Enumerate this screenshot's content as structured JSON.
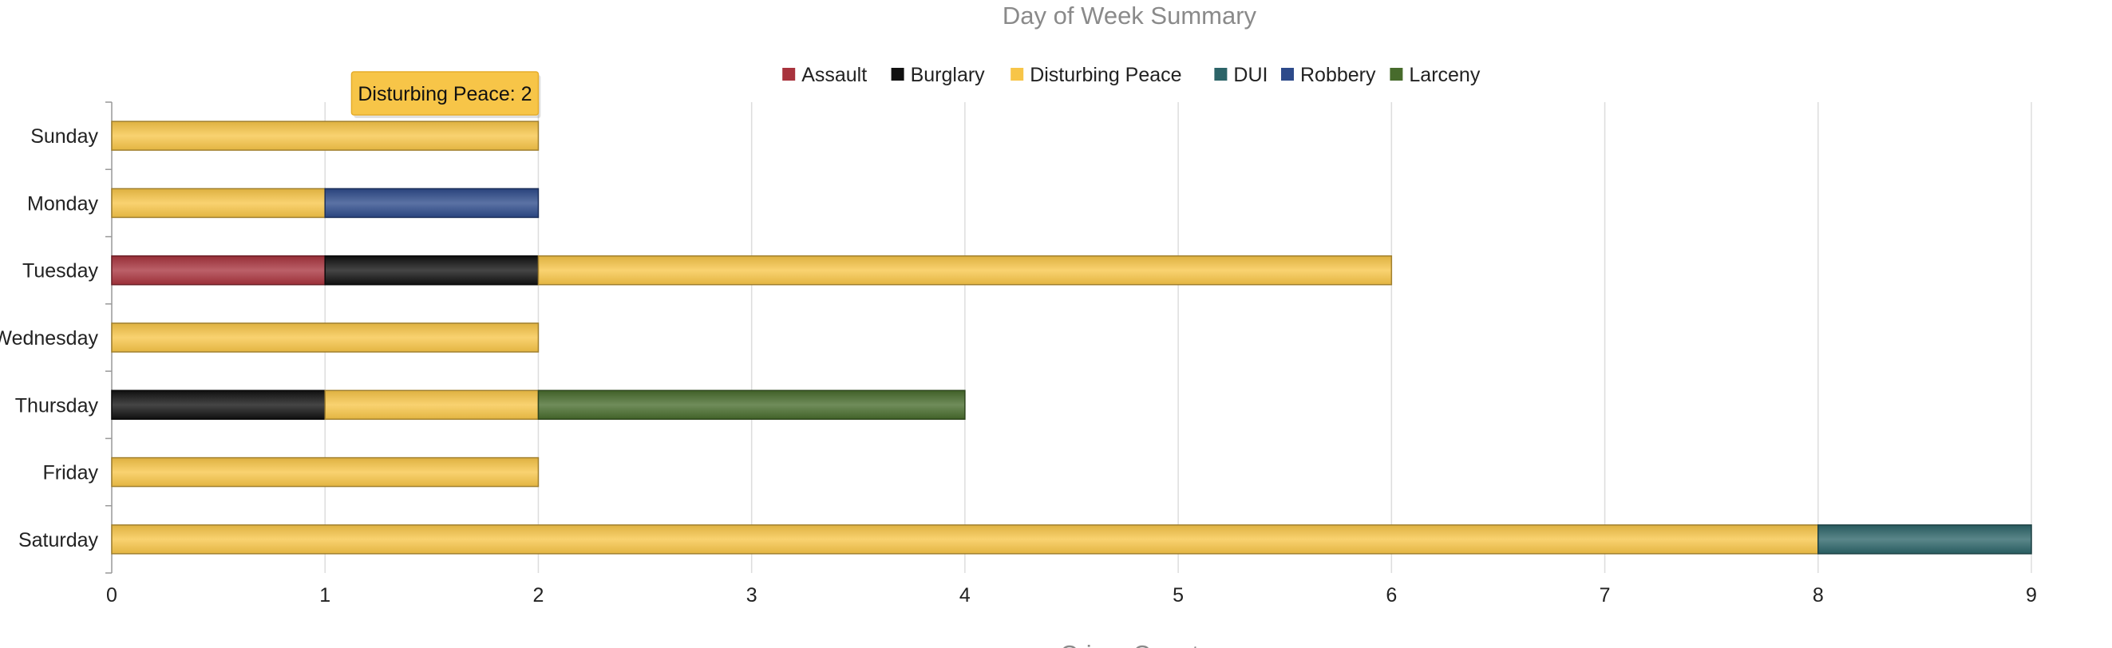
{
  "colors": {
    "Assault": "#a8333d",
    "Burglary": "#111111",
    "Disturbing Peace": "#f7c548",
    "DUI": "#2c6468",
    "Robbery": "#2d4a8a",
    "Larceny": "#476b2c"
  },
  "tooltip": {
    "text": "Disturbing Peace: 2"
  },
  "chart_data": {
    "type": "bar",
    "orientation": "horizontal",
    "stacked": true,
    "title": "Day of Week Summary",
    "xlabel": "Crime Count",
    "ylabel": "",
    "xlim": [
      0,
      9
    ],
    "x_ticks": [
      "0",
      "1",
      "2",
      "3",
      "4",
      "5",
      "6",
      "7",
      "8",
      "9"
    ],
    "grid": true,
    "legend_position": "top",
    "categories": [
      "Sunday",
      "Monday",
      "Tuesday",
      "Wednesday",
      "Thursday",
      "Friday",
      "Saturday"
    ],
    "series": [
      {
        "name": "Assault",
        "values": [
          0,
          0,
          1,
          0,
          0,
          0,
          0
        ]
      },
      {
        "name": "Burglary",
        "values": [
          0,
          0,
          1,
          0,
          1,
          0,
          0
        ]
      },
      {
        "name": "Disturbing Peace",
        "values": [
          2,
          1,
          4,
          2,
          1,
          2,
          8
        ]
      },
      {
        "name": "DUI",
        "values": [
          0,
          0,
          0,
          0,
          0,
          0,
          1
        ]
      },
      {
        "name": "Robbery",
        "values": [
          0,
          1,
          0,
          0,
          0,
          0,
          0
        ]
      },
      {
        "name": "Larceny",
        "values": [
          0,
          0,
          0,
          0,
          2,
          0,
          0
        ]
      }
    ]
  }
}
